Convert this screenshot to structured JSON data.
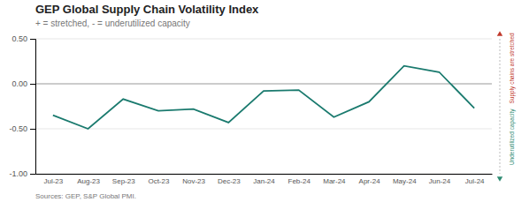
{
  "chart_data": {
    "type": "line",
    "title": "GEP Global Supply Chain Volatility Index",
    "subtitle": "+ = stretched,  - = underutilized capacity",
    "source": "Sources: GEP, S&P Global PMI.",
    "categories": [
      "Jul-23",
      "Aug-23",
      "Sep-23",
      "Oct-23",
      "Nov-23",
      "Dec-23",
      "Jan-24",
      "Feb-24",
      "Mar-24",
      "Apr-24",
      "May-24",
      "Jun-24",
      "Jul-24"
    ],
    "values": [
      -0.35,
      -0.5,
      -0.17,
      -0.3,
      -0.28,
      -0.43,
      -0.08,
      -0.07,
      -0.37,
      -0.2,
      0.2,
      0.13,
      -0.27
    ],
    "color": "#1a7a6e",
    "ylim": [
      -1.0,
      0.5
    ],
    "yticks": [
      {
        "value": -1.0,
        "label": "-1.00"
      },
      {
        "value": -0.5,
        "label": "-0.50"
      },
      {
        "value": 0.0,
        "label": "0.00"
      },
      {
        "value": 0.5,
        "label": "0.50"
      }
    ],
    "grid": true,
    "annotations": [
      {
        "text": "Supply chains are stretched",
        "color": "#c0392b"
      },
      {
        "text": "Underutilized capacity",
        "color": "#2e8b72"
      }
    ]
  }
}
